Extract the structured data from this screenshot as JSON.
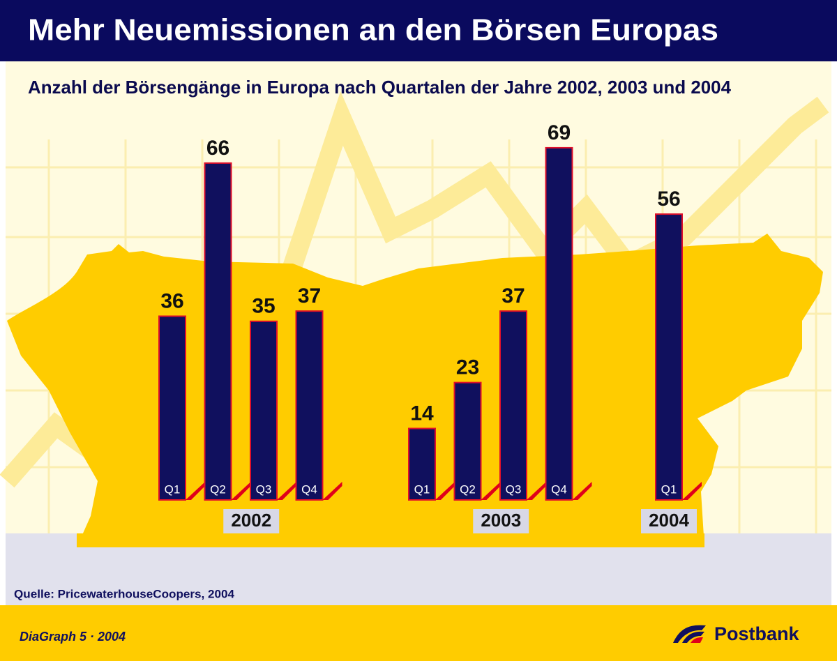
{
  "chart_data": {
    "type": "bar",
    "title": "Mehr Neuemissionen an den Börsen Europas",
    "subtitle": "Anzahl der Börsengänge in Europa nach Quartalen der Jahre 2002, 2003 und 2004",
    "color": "#10105e",
    "groups": [
      {
        "label": "2002",
        "categories": [
          "Q1",
          "Q2",
          "Q3",
          "Q4"
        ],
        "values": [
          36,
          66,
          35,
          37
        ]
      },
      {
        "label": "2003",
        "categories": [
          "Q1",
          "Q2",
          "Q3",
          "Q4"
        ],
        "values": [
          14,
          23,
          37,
          69
        ]
      },
      {
        "label": "2004",
        "categories": [
          "Q1"
        ],
        "values": [
          56
        ]
      }
    ],
    "source": "Quelle: PricewaterhouseCoopers, 2004"
  },
  "footer": {
    "credit": "DiaGraph 5 · 2004",
    "brand": "Postbank"
  }
}
